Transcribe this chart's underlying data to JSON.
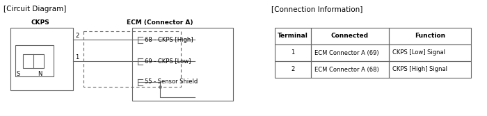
{
  "title_left": "[Circuit Diagram]",
  "title_right": "[Connection Information]",
  "ckps_label": "CKPS",
  "ecm_label": "ECM (Connector A)",
  "wire_labels": [
    "68 - CKPS [High]",
    "69 - CKPS [Low]",
    "55 - Sensor Shield"
  ],
  "table_headers": [
    "Terminal",
    "Connected",
    "Function"
  ],
  "table_rows": [
    [
      "1",
      "ECM Connector A (69)",
      "CKPS [Low] Signal"
    ],
    [
      "2",
      "ECM Connector A (68)",
      "CKPS [High] Signal"
    ]
  ],
  "bg_color": "#ffffff",
  "line_color": "#666666",
  "text_color": "#000000",
  "font_size": 6.5,
  "title_font_size": 7.5
}
